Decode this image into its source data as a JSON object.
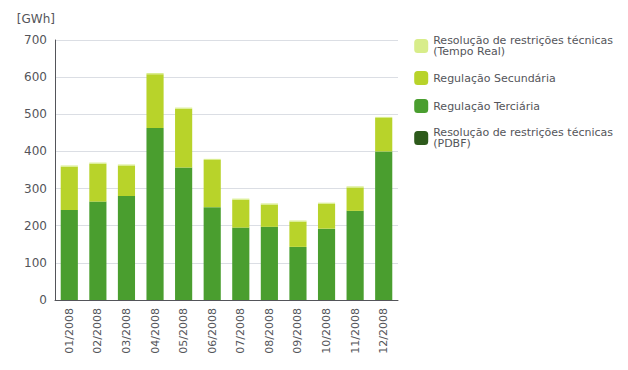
{
  "chart_data": {
    "type": "bar",
    "stacked": true,
    "ylabel": "[GWh]",
    "categories": [
      "01/2008",
      "02/2008",
      "03/2008",
      "04/2008",
      "05/2008",
      "06/2008",
      "07/2008",
      "08/2008",
      "09/2008",
      "10/2008",
      "11/2008",
      "12/2008"
    ],
    "series": [
      {
        "name": "Resolução de restrições técnicas\n(PDBF)",
        "color": "#2d5a1b",
        "values": [
          0,
          0,
          0,
          0,
          0,
          0,
          0,
          0,
          0,
          0,
          0,
          0
        ]
      },
      {
        "name": "Regulação Terciária",
        "color": "#4a9e2f",
        "values": [
          242,
          265,
          280,
          463,
          357,
          250,
          195,
          197,
          143,
          192,
          240,
          400
        ]
      },
      {
        "name": "Regulação Secundária",
        "color": "#b8d32a",
        "values": [
          117,
          102,
          82,
          145,
          158,
          127,
          75,
          60,
          68,
          67,
          63,
          90
        ]
      },
      {
        "name": "Resolução de restrições técnicas\n(Tempo Real)",
        "color": "#d8ed8a",
        "values": [
          3,
          3,
          3,
          3,
          3,
          3,
          3,
          3,
          3,
          3,
          3,
          3
        ]
      }
    ],
    "ylim": [
      0,
      700
    ],
    "yticks": [
      0,
      100,
      200,
      300,
      400,
      500,
      600,
      700
    ],
    "grid": true,
    "legend": "right"
  }
}
